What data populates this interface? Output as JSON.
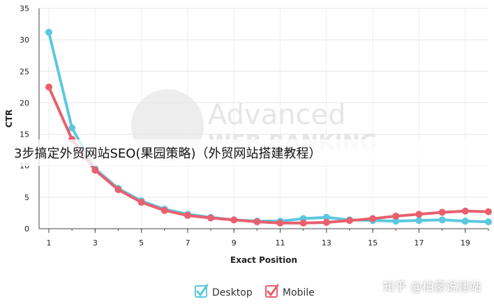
{
  "chart_data": {
    "type": "line",
    "x": [
      1,
      2,
      3,
      4,
      5,
      6,
      7,
      8,
      9,
      10,
      11,
      12,
      13,
      14,
      15,
      16,
      17,
      18,
      19,
      20
    ],
    "series": [
      {
        "name": "Desktop",
        "color": "#5bc8df",
        "values": [
          31.2,
          16.0,
          9.5,
          6.4,
          4.4,
          3.1,
          2.3,
          1.8,
          1.4,
          1.2,
          1.2,
          1.6,
          1.8,
          1.4,
          1.3,
          1.2,
          1.3,
          1.4,
          1.2,
          1.1
        ]
      },
      {
        "name": "Mobile",
        "color": "#e8606e",
        "values": [
          22.5,
          14.2,
          9.3,
          6.2,
          4.2,
          2.9,
          2.1,
          1.7,
          1.4,
          1.1,
          0.9,
          0.9,
          1.0,
          1.3,
          1.6,
          2.0,
          2.3,
          2.6,
          2.8,
          2.7
        ]
      }
    ],
    "xticks": [
      "1",
      "3",
      "5",
      "7",
      "9",
      "11",
      "13",
      "15",
      "17",
      "19"
    ],
    "yticks": [
      "0",
      "5",
      "10",
      "15",
      "20",
      "25",
      "30",
      "35"
    ],
    "xlim": [
      1,
      20
    ],
    "ylim": [
      0,
      35
    ],
    "xlabel": "Exact Position",
    "ylabel": "CTR",
    "grid": true,
    "legend_position": "bottom-center"
  },
  "watermark": {
    "line1": "Advanced",
    "line2": "WEB RANKING"
  },
  "overlay_title": "3步搞定外贸网站SEO(果园策略)（外贸网站搭建教程）",
  "footer_credit": "知乎 @柏豪说建站"
}
